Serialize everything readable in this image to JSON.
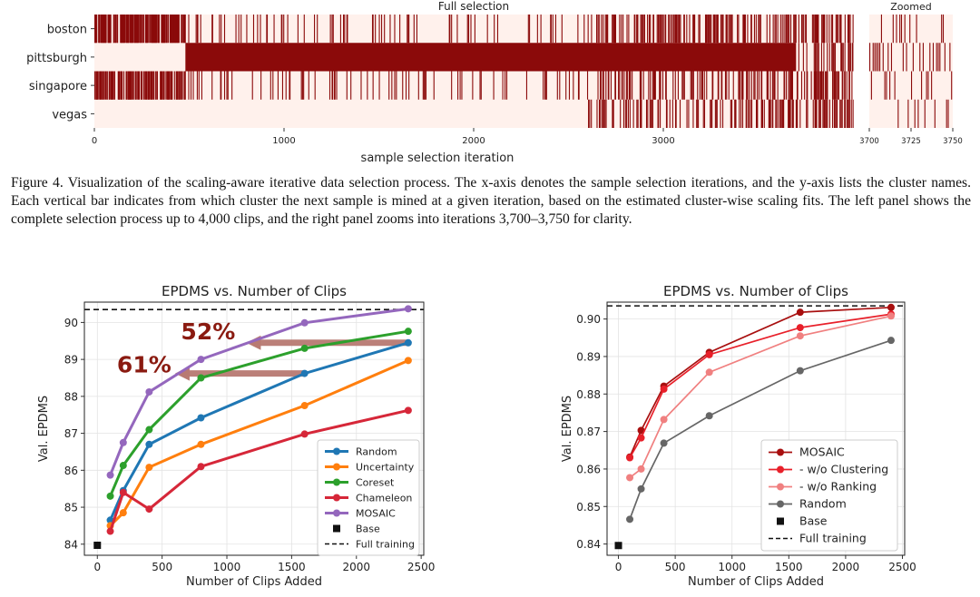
{
  "figure4": {
    "caption": "Figure 4. Visualization of the scaling-aware iterative data selection process. The x-axis denotes the sample selection iterations, and the y-axis lists the cluster names. Each vertical bar indicates from which cluster the next sample is mined at a given iteration, based on the estimated cluster-wise scaling fits. The left panel shows the complete selection process up to 4,000 clips, and the right panel zooms into iterations 3,700–3,750 for clarity.",
    "bar_color": "#8b0a0a",
    "background_color": "#fff1ec"
  },
  "chart_data": [
    {
      "type": "heatmap",
      "title": "Full selection",
      "xlabel": "sample selection iteration",
      "ylabel": "",
      "categories": [
        "boston",
        "pittsburgh",
        "singapore",
        "vegas"
      ],
      "xlim": [
        0,
        4000
      ],
      "xticks": [
        0,
        1000,
        2000,
        3000
      ],
      "segments": {
        "boston": [
          [
            0,
            480,
            0.7
          ],
          [
            480,
            2650,
            0.12
          ],
          [
            2650,
            3800,
            0.35
          ],
          [
            3800,
            4000,
            0.45
          ]
        ],
        "pittsburgh": [
          [
            480,
            3700,
            1.0
          ],
          [
            3700,
            4000,
            0.3
          ]
        ],
        "singapore": [
          [
            0,
            480,
            0.7
          ],
          [
            480,
            2650,
            0.1
          ],
          [
            2650,
            3800,
            0.3
          ],
          [
            3800,
            4000,
            0.45
          ]
        ],
        "vegas": [
          [
            2600,
            3800,
            0.25
          ],
          [
            3800,
            4000,
            0.45
          ]
        ]
      }
    },
    {
      "type": "heatmap",
      "title": "Zoomed",
      "xlabel": "",
      "ylabel": "",
      "categories": [
        "boston",
        "pittsburgh",
        "singapore",
        "vegas"
      ],
      "xlim": [
        3700,
        3750
      ],
      "xticks": [
        3700,
        3725,
        3750
      ],
      "sequence_seed": 37
    },
    {
      "type": "line",
      "title": "EPDMS vs. Number of Clips",
      "xlabel": "Number of Clips Added",
      "ylabel": "Val. EPDMS",
      "xlim": [
        -100,
        2520
      ],
      "ylim": [
        83.7,
        90.55
      ],
      "xticks": [
        0,
        500,
        1000,
        1500,
        2000,
        2500
      ],
      "yticks": [
        84,
        85,
        86,
        87,
        88,
        89,
        90
      ],
      "grid": true,
      "legend": "lower-right",
      "x": [
        100,
        200,
        400,
        800,
        1600,
        2400
      ],
      "series": [
        {
          "name": "Random",
          "color": "#1f77b4",
          "values": [
            84.65,
            85.45,
            86.7,
            87.42,
            88.62,
            89.45
          ]
        },
        {
          "name": "Uncertainty",
          "color": "#ff7f0e",
          "values": [
            84.5,
            84.85,
            86.08,
            86.7,
            87.75,
            88.97
          ]
        },
        {
          "name": "Coreset",
          "color": "#2ca02c",
          "values": [
            85.3,
            86.13,
            87.1,
            88.5,
            89.3,
            89.76
          ]
        },
        {
          "name": "Chameleon",
          "color": "#d62739",
          "values": [
            84.35,
            85.4,
            84.95,
            86.1,
            86.98,
            87.62
          ]
        },
        {
          "name": "MOSAIC",
          "color": "#9467bd",
          "values": [
            85.87,
            86.75,
            88.12,
            89.0,
            89.99,
            90.37
          ]
        }
      ],
      "base": {
        "name": "Base",
        "x": 0,
        "y": 83.97
      },
      "full_training": {
        "name": "Full training",
        "y": 90.35
      },
      "annotations": [
        {
          "text": "52%",
          "y": 89.45,
          "from_x": 2400,
          "to_x": 1150
        },
        {
          "text": "61%",
          "y": 88.62,
          "from_x": 1600,
          "to_x": 600
        }
      ]
    },
    {
      "type": "line",
      "title": "EPDMS vs. Number of Clips",
      "xlabel": "Number of Clips Added",
      "ylabel": "Val. EPDMS",
      "xlim": [
        -100,
        2520
      ],
      "ylim": [
        0.837,
        0.9045
      ],
      "xticks": [
        0,
        500,
        1000,
        1500,
        2000,
        2500
      ],
      "yticks": [
        0.84,
        0.85,
        0.86,
        0.87,
        0.88,
        0.89,
        0.9
      ],
      "grid": true,
      "legend": "lower-right",
      "x": [
        100,
        200,
        400,
        800,
        1600,
        2400
      ],
      "series": [
        {
          "name": "MOSAIC",
          "color": "#a80f0f",
          "values": [
            0.8632,
            0.8703,
            0.8821,
            0.8911,
            0.9018,
            0.9031
          ]
        },
        {
          "name": "- w/o Clustering",
          "color": "#e8202a",
          "values": [
            0.863,
            0.8683,
            0.8813,
            0.8905,
            0.8977,
            0.9013
          ]
        },
        {
          "name": "- w/o Ranking",
          "color": "#f08080",
          "values": [
            0.8577,
            0.86,
            0.8732,
            0.8858,
            0.8955,
            0.9008
          ]
        },
        {
          "name": "Random",
          "color": "#666666",
          "values": [
            0.8466,
            0.8547,
            0.8669,
            0.8742,
            0.8862,
            0.8943
          ]
        }
      ],
      "base": {
        "name": "Base",
        "x": 0,
        "y": 0.8396
      },
      "full_training": {
        "name": "Full training",
        "y": 0.9035
      }
    }
  ]
}
